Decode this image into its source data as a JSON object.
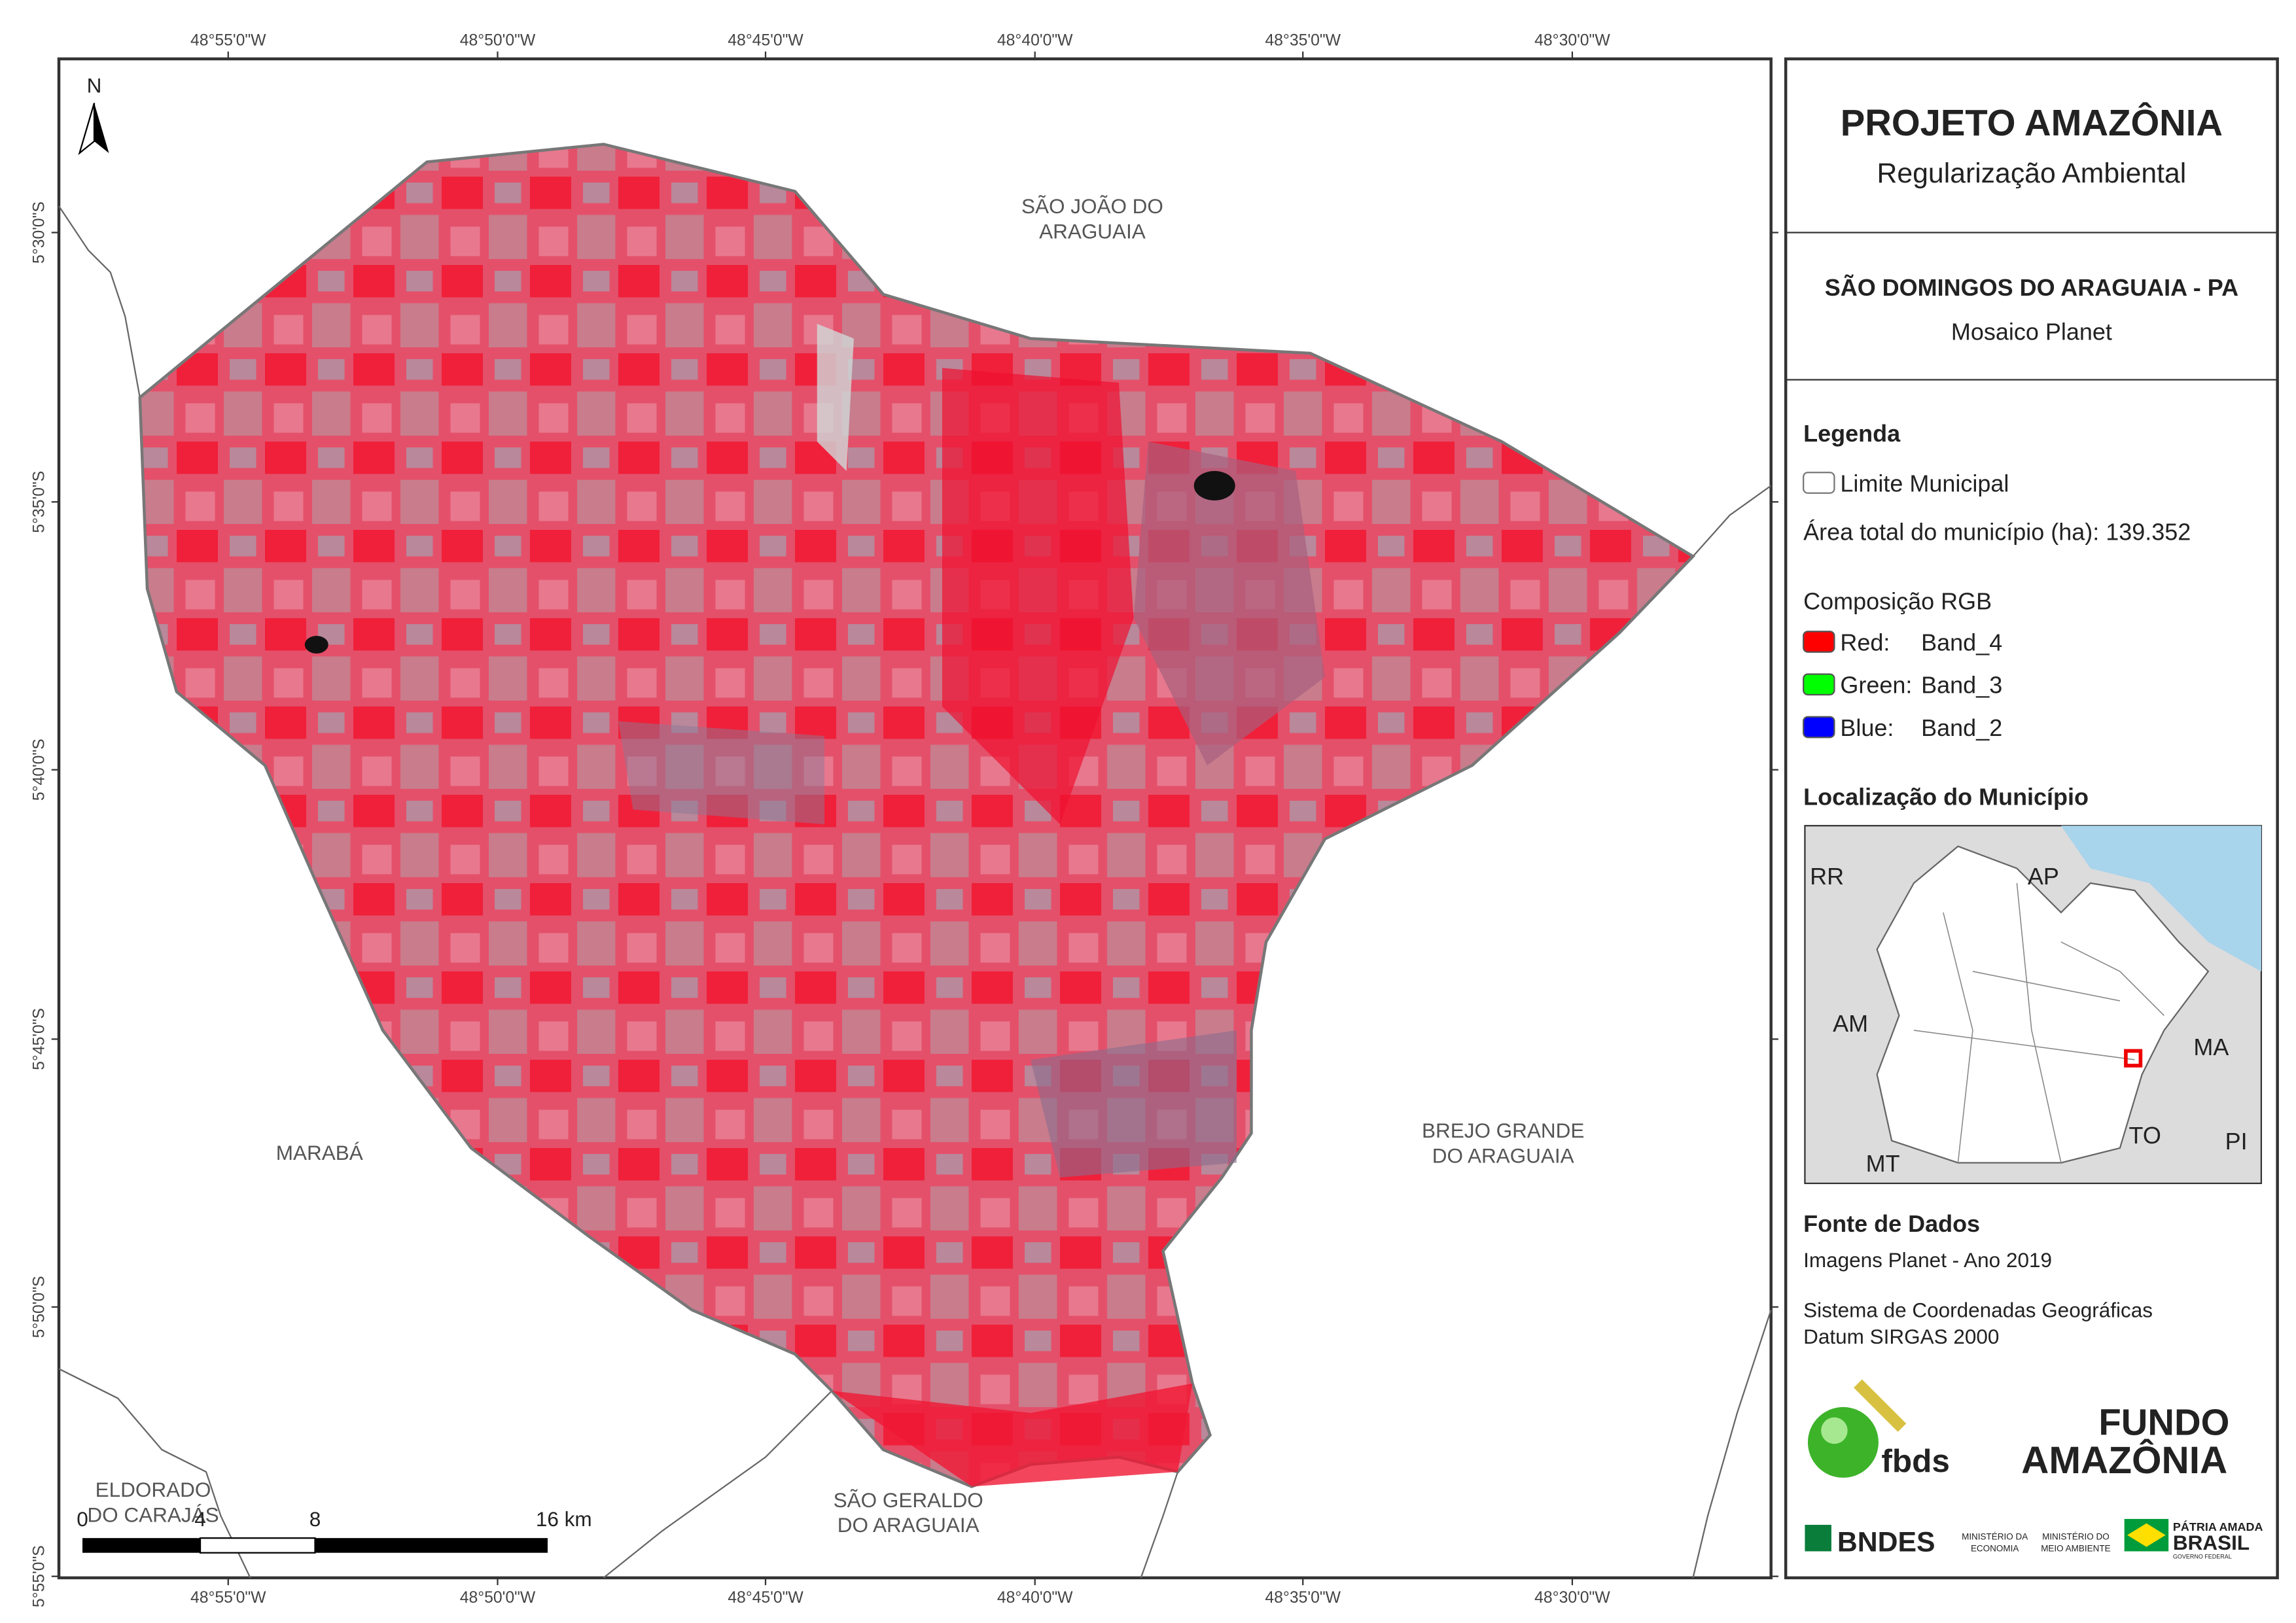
{
  "map": {
    "x_labels": [
      "48°55'0\"W",
      "48°50'0\"W",
      "48°45'0\"W",
      "48°40'0\"W",
      "48°35'0\"W",
      "48°30'0\"W"
    ],
    "y_labels": [
      "5°30'0\"S",
      "5°35'0\"S",
      "5°40'0\"S",
      "5°45'0\"S",
      "5°50'0\"S",
      "5°55'0\"S"
    ],
    "north": "N",
    "places": [
      [
        "SÃO JOÃO DO",
        "ARAGUAIA"
      ],
      [
        "MARABÁ"
      ],
      [
        "BREJO GRANDE",
        "DO ARAGUAIA"
      ],
      [
        "ELDORADO",
        "DO CARAJÁS"
      ],
      [
        "SÃO GERALDO",
        "DO ARAGUAIA"
      ]
    ],
    "scale_labels": [
      "0",
      "4",
      "8",
      "16 km"
    ]
  },
  "panel": {
    "title": "PROJETO AMAZÔNIA",
    "subtitle": "Regularização Ambiental",
    "municipality": "SÃO DOMINGOS DO ARAGUAIA - PA",
    "mosaic": "Mosaico Planet",
    "legend": {
      "title": "Legenda",
      "boundary": "Limite Municipal",
      "area": "Área total do município (ha): 139.352",
      "rgb_title": "Composição RGB",
      "bands": [
        [
          "Red:",
          "Band_4"
        ],
        [
          "Green:",
          "Band_3"
        ],
        [
          "Blue:",
          "Band_2"
        ]
      ]
    },
    "location": {
      "title": "Localização do Município",
      "states": [
        "RR",
        "AP",
        "AM",
        "MA",
        "TO",
        "PI",
        "MT"
      ]
    },
    "sources": {
      "title": "Fonte de Dados",
      "images": "Imagens Planet - Ano 2019",
      "crs": [
        "Sistema de Coordenadas Geográficas",
        "Datum SIRGAS 2000"
      ]
    },
    "logos": {
      "fbds": "fbds",
      "fundo": [
        "FUNDO",
        "AMAZÔNIA"
      ],
      "bndes": "BNDES",
      "ministries": [
        [
          "MINISTÉRIO DA",
          "ECONOMIA"
        ],
        [
          "MINISTÉRIO DO",
          "MEIO AMBIENTE"
        ]
      ],
      "brasil": [
        "PÁTRIA AMADA",
        "BRASIL",
        "GOVERNO FEDERAL"
      ]
    }
  }
}
